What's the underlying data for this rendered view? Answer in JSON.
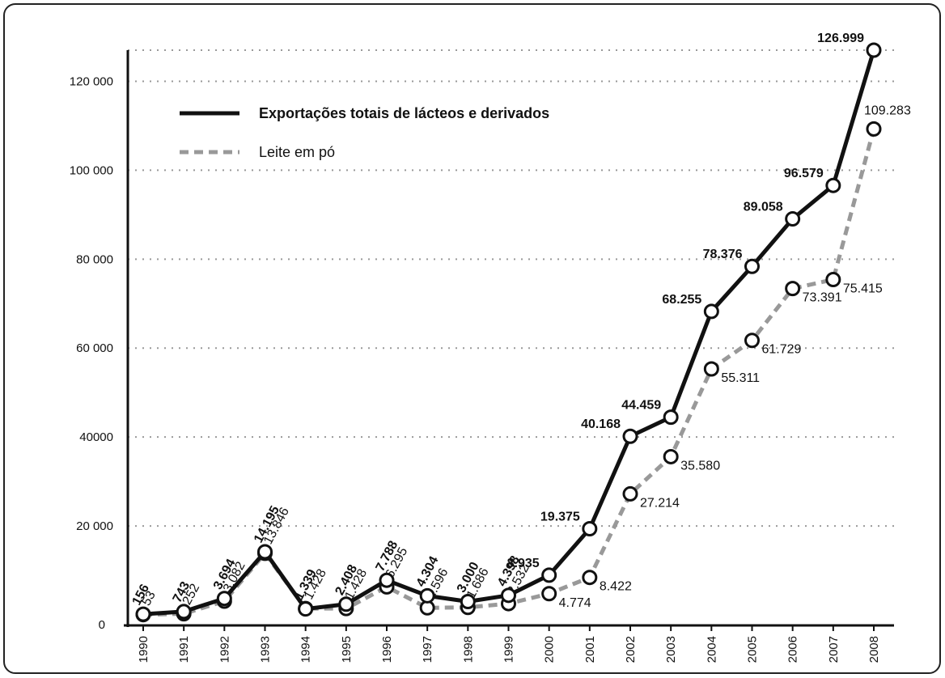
{
  "chart_data": {
    "type": "line",
    "categories": [
      "1990",
      "1991",
      "1992",
      "1993",
      "1994",
      "1995",
      "1996",
      "1997",
      "1998",
      "1999",
      "2000",
      "2001",
      "2002",
      "2003",
      "2004",
      "2005",
      "2006",
      "2007",
      "2008"
    ],
    "series": [
      {
        "name": "Exportações totais de lácteos e derivados",
        "color": "#111111",
        "dashed": false,
        "values": [
          156,
          743,
          3694,
          14195,
          1339,
          2408,
          7788,
          4304,
          3000,
          4398,
          8935,
          19375,
          40168,
          44459,
          68255,
          78376,
          89058,
          96579,
          126999
        ],
        "value_labels": [
          "156",
          "743",
          "3.694",
          "14.195",
          "1.339",
          "2.408",
          "7.788",
          "4.304",
          "3.000",
          "4.398",
          "8.935",
          "19.375",
          "40.168",
          "44.459",
          "68.255",
          "78.376",
          "89.058",
          "96.579",
          "126.999"
        ]
      },
      {
        "name": "Leite em pó",
        "color": "#999999",
        "dashed": true,
        "values": [
          53,
          252,
          3082,
          13846,
          1428,
          1428,
          6295,
          1596,
          1686,
          2532,
          4774,
          8422,
          27214,
          35580,
          55311,
          61729,
          73391,
          75415,
          109283
        ],
        "value_labels": [
          "53",
          "252",
          "3.082",
          "13.846",
          "1.428",
          "1.428",
          "6.295",
          "1.596",
          "1.686",
          "2.532",
          "4.774",
          "8.422",
          "27.214",
          "35.580",
          "55.311",
          "61.729",
          "73.391",
          "75.415",
          "109.283"
        ]
      }
    ],
    "ylim": [
      0,
      127000
    ],
    "yticks": [
      0,
      {
        "value": 20000,
        "label": "20 000"
      },
      40000,
      {
        "value": 60000,
        "label": "60 000"
      },
      {
        "value": 80000,
        "label": "80 000"
      },
      {
        "value": 100000,
        "label": "100 000"
      },
      {
        "value": 120000,
        "label": "120 000"
      }
    ],
    "grid": true,
    "legend": "top-left"
  }
}
